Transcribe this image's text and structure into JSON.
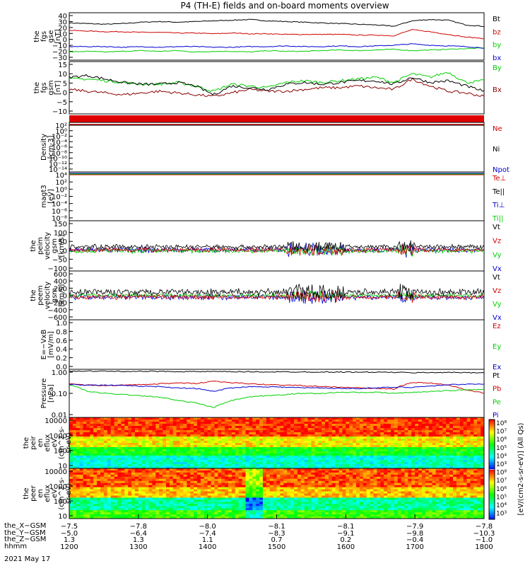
{
  "title": "P4 (TH-E) fields and on-board moments overview",
  "date": "2021 May 17",
  "colors": {
    "black": "#000000",
    "red": "#d00000",
    "green": "#00d000",
    "blue": "#0000d0",
    "darkred": "#8a0000"
  },
  "chart_data": [
    {
      "type": "line",
      "panel": "fgs-gse",
      "ylabel": [
        "the",
        "fgs",
        "gse",
        "[nT]"
      ],
      "yticks": [
        "40",
        "30",
        "20",
        "10",
        "0",
        "−10",
        "−20",
        "−30"
      ],
      "ylim": [
        -30,
        40
      ],
      "series": [
        {
          "name": "Bt",
          "color": "#000000",
          "values": [
            25,
            24,
            23,
            24,
            26,
            27,
            26,
            27,
            28,
            29,
            30,
            28,
            27,
            26,
            25,
            24,
            23,
            22,
            20,
            28,
            30,
            29,
            22,
            20
          ]
        },
        {
          "name": "bz",
          "color": "#d00000",
          "values": [
            14,
            13,
            12,
            12,
            11,
            11,
            10,
            10,
            9,
            10,
            9,
            9,
            8,
            8,
            8,
            8,
            7,
            7,
            6,
            15,
            12,
            8,
            4,
            2
          ]
        },
        {
          "name": "by",
          "color": "#00d000",
          "values": [
            -18,
            -17,
            -18,
            -17,
            -16,
            -17,
            -16,
            -18,
            -17,
            -17,
            -18,
            -16,
            -17,
            -17,
            -16,
            -15,
            -16,
            -15,
            -14,
            -16,
            -15,
            -14,
            -13,
            -12
          ]
        },
        {
          "name": "bx",
          "color": "#0000d0",
          "values": [
            -10,
            -10,
            -10,
            -11,
            -10,
            -11,
            -10,
            -10,
            -11,
            -11,
            -10,
            -10,
            -9,
            -10,
            -10,
            -9,
            -10,
            -9,
            -8,
            -6,
            -8,
            -9,
            -10,
            -12
          ]
        }
      ]
    },
    {
      "type": "line",
      "panel": "fgs-gsm",
      "ylabel": [
        "the",
        "fgs",
        "gsm",
        "[nT]"
      ],
      "yticks": [
        "15",
        "10",
        "5",
        "0",
        "−5",
        "−10"
      ],
      "ylim": [
        -15,
        15
      ],
      "series": [
        {
          "name": "By",
          "color": "#00d000",
          "values": [
            5,
            5,
            4,
            3,
            2,
            2,
            3,
            1,
            -2,
            2,
            1,
            0,
            3,
            4,
            3,
            4,
            5,
            6,
            3,
            8,
            6,
            9,
            3,
            4
          ]
        },
        {
          "name": "Bx",
          "color": "#8a0000",
          "values": [
            -1,
            -2,
            -3,
            -4,
            -3,
            -2,
            -3,
            -4,
            -5,
            -3,
            -1,
            -2,
            -2,
            -1,
            0,
            0,
            1,
            0,
            -1,
            5,
            1,
            -2,
            -3,
            -5
          ]
        },
        {
          "name": "",
          "color": "#000000",
          "values": [
            6,
            7,
            5,
            3,
            2,
            2,
            3,
            1,
            -4,
            1,
            0,
            -1,
            2,
            3,
            2,
            3,
            4,
            4,
            2,
            6,
            3,
            4,
            1,
            -2
          ]
        }
      ]
    },
    {
      "type": "line",
      "panel": "density",
      "ylabel": [
        "Density",
        "[cm-3]"
      ],
      "yticks": [
        "10²",
        "10⁰",
        "10⁻²",
        "10⁻⁴",
        "10⁻⁶",
        "10⁻⁸",
        "10⁻¹⁰",
        "10⁻¹²",
        "10⁻¹⁴"
      ],
      "series": [
        {
          "name": "Ne",
          "color": "#d00000"
        },
        {
          "name": "Ni",
          "color": "#000000"
        },
        {
          "name": "Npot",
          "color": "#0000d0"
        }
      ]
    },
    {
      "type": "line",
      "panel": "temperature",
      "ylabel": [
        "magt3",
        "[eV]"
      ],
      "yticks": [
        "10⁴",
        "10²",
        "10⁰",
        "10⁻²",
        "10⁻⁴",
        "10⁻⁶",
        "10⁻⁸"
      ],
      "series": [
        {
          "name": "Te⊥",
          "color": "#d00000"
        },
        {
          "name": "Te||",
          "color": "#000000"
        },
        {
          "name": "Ti⊥",
          "color": "#0000d0"
        },
        {
          "name": "Ti||",
          "color": "#00d000"
        }
      ]
    },
    {
      "type": "line",
      "panel": "peim-velocity",
      "ylabel": [
        "the",
        "peim",
        "velocity",
        "gsm",
        "[km/s]"
      ],
      "yticks": [
        "150",
        "100",
        "50",
        "0",
        "−50",
        "−100"
      ],
      "ylim": [
        -100,
        150
      ],
      "series": [
        {
          "name": "Vt",
          "color": "#000000"
        },
        {
          "name": "Vz",
          "color": "#d00000"
        },
        {
          "name": "Vy",
          "color": "#00d000"
        },
        {
          "name": "Vx",
          "color": "#0000d0"
        }
      ]
    },
    {
      "type": "line",
      "panel": "peem-velocity",
      "ylabel": [
        "the",
        "peem",
        "velocity",
        "gsm",
        "[km/s]"
      ],
      "yticks": [
        "600",
        "400",
        "200",
        "0",
        "−200",
        "−400",
        "−600"
      ],
      "ylim": [
        -600,
        600
      ],
      "series": [
        {
          "name": "Vt",
          "color": "#000000"
        },
        {
          "name": "Vz",
          "color": "#d00000"
        },
        {
          "name": "Vy",
          "color": "#00d000"
        },
        {
          "name": "Vx",
          "color": "#0000d0"
        }
      ]
    },
    {
      "type": "line",
      "panel": "efield",
      "ylabel": [
        "E=−VxB",
        "[mV/m]"
      ],
      "yticks": [
        "1.0",
        "0.8",
        "0.6",
        "0.4",
        "0.2",
        "0.0"
      ],
      "ylim": [
        0,
        1
      ],
      "series": [
        {
          "name": "Ez",
          "color": "#d00000"
        },
        {
          "name": "Ey",
          "color": "#00d000"
        },
        {
          "name": "Ex",
          "color": "#0000d0"
        }
      ]
    },
    {
      "type": "line",
      "panel": "pressure",
      "ylabel": [
        "Pressure",
        "[nPa]"
      ],
      "yticks": [
        "1.00",
        "0.10",
        "0.01"
      ],
      "ylim": [
        0.01,
        1.0
      ],
      "scale": "log",
      "series": [
        {
          "name": "Pt",
          "color": "#000000",
          "values": [
            0.85,
            0.84,
            0.83,
            0.83,
            0.82,
            0.82,
            0.81,
            0.8,
            0.8,
            0.79,
            0.79,
            0.78,
            0.78,
            0.78,
            0.77,
            0.77,
            0.76,
            0.76,
            0.75,
            0.72,
            0.74,
            0.74,
            0.73,
            0.73
          ]
        },
        {
          "name": "Pb",
          "color": "#d00000",
          "values": [
            0.25,
            0.22,
            0.21,
            0.22,
            0.23,
            0.25,
            0.27,
            0.26,
            0.32,
            0.28,
            0.25,
            0.23,
            0.22,
            0.21,
            0.19,
            0.18,
            0.17,
            0.16,
            0.15,
            0.28,
            0.27,
            0.22,
            0.14,
            0.1
          ]
        },
        {
          "name": "Pe",
          "color": "#00d000",
          "values": [
            0.23,
            0.12,
            0.1,
            0.09,
            0.08,
            0.07,
            0.05,
            0.04,
            0.025,
            0.05,
            0.07,
            0.08,
            0.09,
            0.1,
            0.1,
            0.11,
            0.11,
            0.11,
            0.1,
            0.11,
            0.12,
            0.13,
            0.14,
            0.15
          ]
        },
        {
          "name": "Pi",
          "color": "#0000d0",
          "values": [
            0.24,
            0.22,
            0.22,
            0.21,
            0.2,
            0.19,
            0.17,
            0.16,
            0.12,
            0.17,
            0.19,
            0.19,
            0.18,
            0.17,
            0.17,
            0.16,
            0.16,
            0.17,
            0.18,
            0.18,
            0.2,
            0.23,
            0.24,
            0.25
          ]
        }
      ]
    },
    {
      "type": "heatmap",
      "panel": "peir-eflux",
      "ylabel": [
        "the",
        "peir",
        "en",
        "eflux",
        "eV",
        "(cm^2-s-",
        "sr-eV)"
      ],
      "yticks": [
        "10000",
        "1000",
        "100",
        "10"
      ]
    },
    {
      "type": "heatmap",
      "panel": "peer-eflux",
      "ylabel": [
        "the",
        "peer",
        "en",
        "eflux",
        "eV",
        "(cm^2-s-",
        "sr-eV)"
      ],
      "yticks": [
        "10000",
        "1000",
        "100",
        "10"
      ]
    }
  ],
  "colorbar": {
    "ticks": [
      "10⁸",
      "10⁷",
      "10⁶",
      "10⁵",
      "10⁴",
      "10³",
      "10⁸",
      "10⁷",
      "10⁶",
      "10⁵",
      "10⁴",
      "10³"
    ],
    "label": "[eV/(cm2-s-sr-eV)] (All Qs)"
  },
  "ephemeris": {
    "labels": [
      "the_X−GSM",
      "the_Y−GSM",
      "the_Z−GSM",
      "hhmm"
    ],
    "rows": [
      [
        "−7.5",
        "−7.8",
        "−8.0",
        "−8.1",
        "−8.1",
        "−7.9",
        "−7.8"
      ],
      [
        "−5.0",
        "−6.4",
        "−7.4",
        "−8.3",
        "−9.1",
        "−9.8",
        "−10.3"
      ],
      [
        "1.3",
        "1.3",
        "1.1",
        "0.7",
        "0.2",
        "−0.4",
        "−1.0"
      ],
      [
        "1200",
        "1300",
        "1400",
        "1500",
        "1600",
        "1700",
        "1800"
      ]
    ]
  }
}
